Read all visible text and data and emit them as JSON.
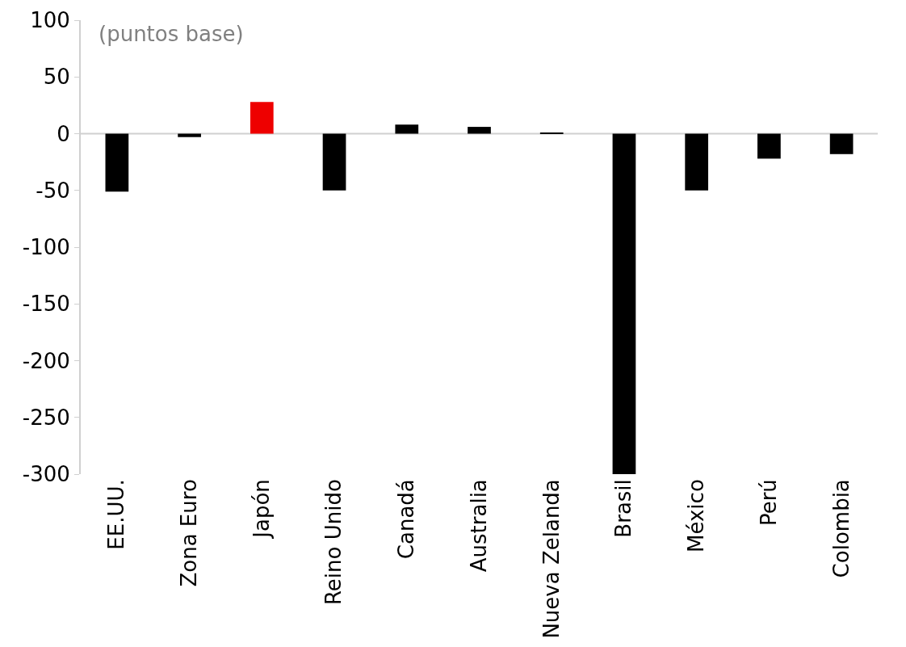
{
  "chart_data": {
    "type": "bar",
    "categories": [
      "EE.UU.",
      "Zona Euro",
      "Japón",
      "Reino Unido",
      "Canadá",
      "Australia",
      "Nueva Zelanda",
      "Brasil",
      "México",
      "Perú",
      "Colombia"
    ],
    "values": [
      -51,
      -3,
      28,
      -50,
      8,
      6,
      0.5,
      -300,
      -50,
      -22,
      -18
    ],
    "colors": [
      "#000000",
      "#000000",
      "#ee0000",
      "#000000",
      "#000000",
      "#000000",
      "#000000",
      "#000000",
      "#000000",
      "#000000",
      "#000000"
    ],
    "ylim": [
      -300,
      100
    ],
    "yticks": [
      -300,
      -250,
      -200,
      -150,
      -100,
      -50,
      0,
      50,
      100
    ],
    "annotations": [
      "(puntos base)"
    ],
    "legend": false
  }
}
